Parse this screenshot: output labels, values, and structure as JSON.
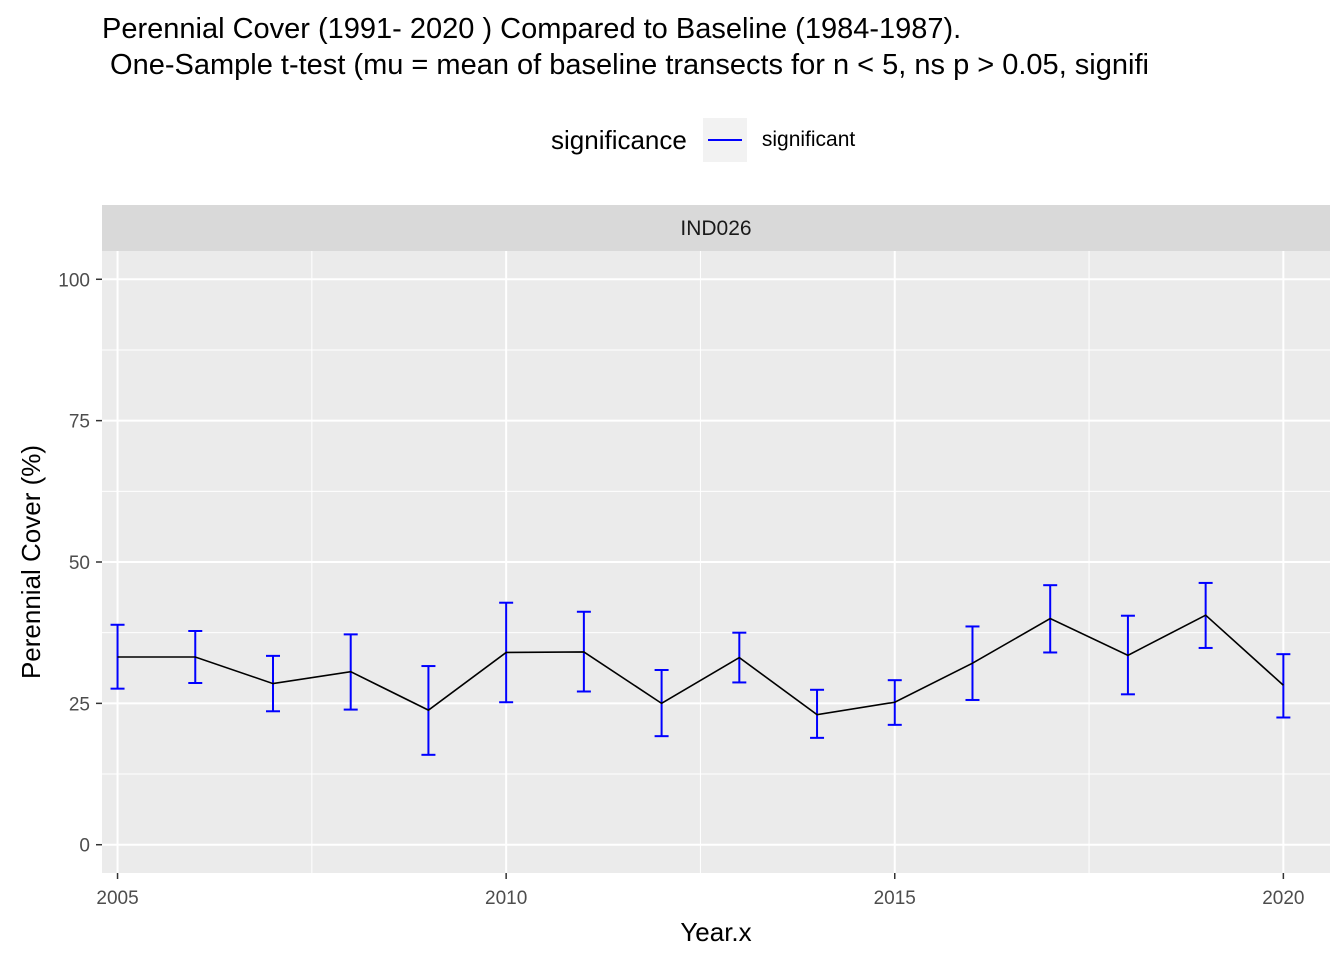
{
  "title_line1": "Perennial Cover (1991- 2020 ) Compared to Baseline (1984-1987).",
  "title_line2": " One-Sample t-test (mu = mean of baseline transects for n < 5, ns p > 0.05, signifi",
  "legend": {
    "title": "significance",
    "items": [
      {
        "label": "significant",
        "color": "#0000ff"
      }
    ]
  },
  "colors": {
    "panel_bg": "#ebebeb",
    "grid": "#ffffff",
    "strip_bg": "#d9d9d9",
    "line": "#000000",
    "errorbar": "#0000ff"
  },
  "chart_data": {
    "type": "line",
    "facet": "IND026",
    "xlabel": "Year.x",
    "ylabel": "Perennial Cover (%)",
    "xlim": [
      2004.8,
      2020.6
    ],
    "ylim": [
      -5,
      105
    ],
    "x_ticks": [
      2005,
      2010,
      2015,
      2020
    ],
    "y_ticks": [
      0,
      25,
      50,
      75,
      100
    ],
    "grid": true,
    "legend_position": "top",
    "series": [
      {
        "name": "significant",
        "x": [
          2005,
          2006,
          2007,
          2008,
          2009,
          2010,
          2011,
          2012,
          2013,
          2014,
          2015,
          2016,
          2017,
          2018,
          2019,
          2020
        ],
        "y": [
          33.2,
          33.2,
          28.5,
          30.6,
          23.8,
          34.0,
          34.1,
          25.0,
          33.1,
          23.0,
          25.2,
          32.1,
          40.0,
          33.5,
          40.6,
          28.2
        ],
        "ymin": [
          27.6,
          28.6,
          23.6,
          23.9,
          15.9,
          25.2,
          27.1,
          19.2,
          28.7,
          18.9,
          21.2,
          25.6,
          34.0,
          26.6,
          34.8,
          22.5
        ],
        "ymax": [
          38.9,
          37.8,
          33.4,
          37.2,
          31.6,
          42.8,
          41.2,
          30.9,
          37.5,
          27.4,
          29.1,
          38.6,
          45.9,
          40.5,
          46.3,
          33.7
        ]
      }
    ]
  }
}
